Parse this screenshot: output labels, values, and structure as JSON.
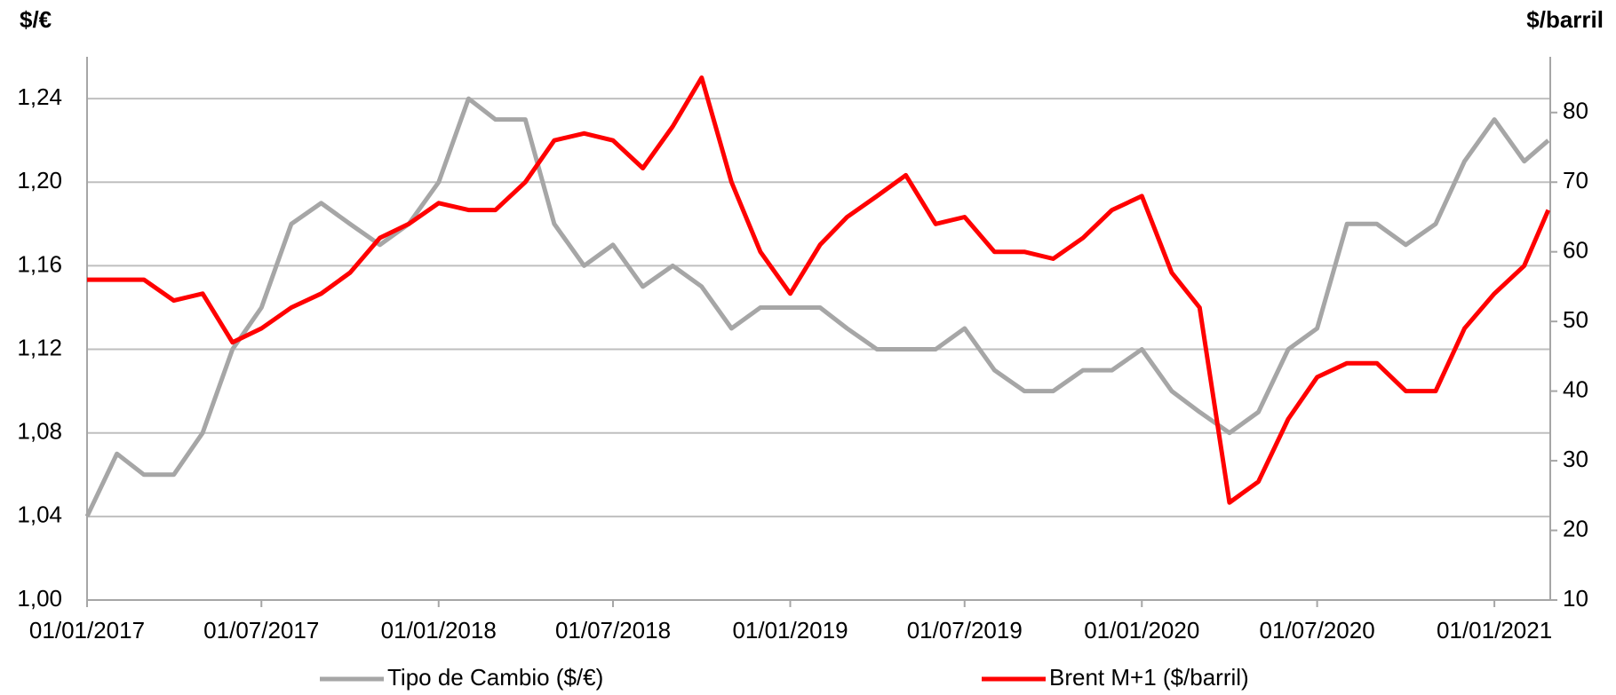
{
  "chart_data": {
    "type": "line",
    "y_label": "$/€",
    "y2_label": "$/barril",
    "x": [
      "2017-01-01",
      "2017-02-01",
      "2017-03-01",
      "2017-04-01",
      "2017-05-01",
      "2017-06-01",
      "2017-07-01",
      "2017-08-01",
      "2017-09-01",
      "2017-10-01",
      "2017-11-01",
      "2017-12-01",
      "2018-01-01",
      "2018-02-01",
      "2018-03-01",
      "2018-04-01",
      "2018-05-01",
      "2018-06-01",
      "2018-07-01",
      "2018-08-01",
      "2018-09-01",
      "2018-10-01",
      "2018-11-01",
      "2018-12-01",
      "2019-01-01",
      "2019-02-01",
      "2019-03-01",
      "2019-04-01",
      "2019-05-01",
      "2019-06-01",
      "2019-07-01",
      "2019-08-01",
      "2019-09-01",
      "2019-10-01",
      "2019-11-01",
      "2019-12-01",
      "2020-01-01",
      "2020-02-01",
      "2020-03-01",
      "2020-04-01",
      "2020-05-01",
      "2020-06-01",
      "2020-07-01",
      "2020-08-01",
      "2020-09-01",
      "2020-10-01",
      "2020-11-01",
      "2020-12-01",
      "2021-01-01",
      "2021-02-01",
      "2021-02-26"
    ],
    "series": [
      {
        "name": "Tipo de Cambio ($/€)",
        "color": "#a6a6a6",
        "axis": "y",
        "values": [
          1.04,
          1.07,
          1.06,
          1.06,
          1.08,
          1.12,
          1.14,
          1.18,
          1.19,
          1.18,
          1.17,
          1.18,
          1.2,
          1.24,
          1.23,
          1.23,
          1.18,
          1.16,
          1.17,
          1.15,
          1.16,
          1.15,
          1.13,
          1.14,
          1.14,
          1.14,
          1.13,
          1.12,
          1.12,
          1.12,
          1.13,
          1.11,
          1.1,
          1.1,
          1.11,
          1.11,
          1.12,
          1.1,
          1.09,
          1.08,
          1.09,
          1.12,
          1.13,
          1.18,
          1.18,
          1.17,
          1.18,
          1.21,
          1.23,
          1.21,
          1.22
        ]
      },
      {
        "name": "Brent M+1 ($/barril)",
        "color": "#ff0000",
        "axis": "y2",
        "values": [
          56,
          56,
          56,
          53,
          54,
          47,
          49,
          52,
          54,
          57,
          62,
          64,
          67,
          66,
          66,
          70,
          76,
          77,
          76,
          72,
          78,
          85,
          70,
          60,
          54,
          61,
          65,
          68,
          71,
          64,
          65,
          60,
          60,
          59,
          62,
          66,
          68,
          57,
          52,
          24,
          27,
          36,
          42,
          44,
          44,
          40,
          40,
          49,
          54,
          58,
          66
        ]
      }
    ],
    "xlim": [
      "2017-01-01",
      "2021-02-28"
    ],
    "xticks": [
      {
        "value": "2017-01-01",
        "label": "01/01/2017"
      },
      {
        "value": "2017-07-01",
        "label": "01/07/2017"
      },
      {
        "value": "2018-01-01",
        "label": "01/01/2018"
      },
      {
        "value": "2018-07-01",
        "label": "01/07/2018"
      },
      {
        "value": "2019-01-01",
        "label": "01/01/2019"
      },
      {
        "value": "2019-07-01",
        "label": "01/07/2019"
      },
      {
        "value": "2020-01-01",
        "label": "01/01/2020"
      },
      {
        "value": "2020-07-01",
        "label": "01/07/2020"
      },
      {
        "value": "2021-01-01",
        "label": "01/01/2021"
      }
    ],
    "ylim": [
      1.0,
      1.26
    ],
    "yticks": [
      {
        "value": 1.0,
        "label": "1,00"
      },
      {
        "value": 1.04,
        "label": "1,04"
      },
      {
        "value": 1.08,
        "label": "1,08"
      },
      {
        "value": 1.12,
        "label": "1,12"
      },
      {
        "value": 1.16,
        "label": "1,16"
      },
      {
        "value": 1.2,
        "label": "1,20"
      },
      {
        "value": 1.24,
        "label": "1,24"
      }
    ],
    "y2lim": [
      10,
      88
    ],
    "y2ticks": [
      10,
      20,
      30,
      40,
      50,
      60,
      70,
      80
    ],
    "y2_tick_color": "#ff5050",
    "grid": true,
    "legend": "bottom"
  }
}
